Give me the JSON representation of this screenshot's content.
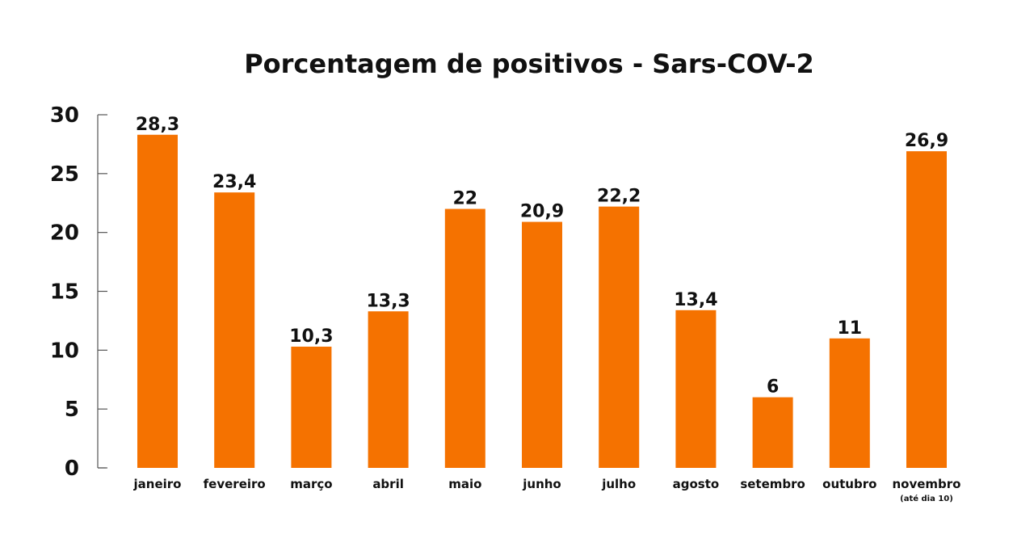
{
  "chart_data": {
    "type": "bar",
    "title": "Porcentagem de positivos - Sars-COV-2",
    "xlabel": "",
    "ylabel": "",
    "ylim": [
      0,
      30
    ],
    "yticks": [
      0,
      5,
      10,
      15,
      20,
      25,
      30
    ],
    "grid": false,
    "categories": [
      "janeiro",
      "fevereiro",
      "março",
      "abril",
      "maio",
      "junho",
      "julho",
      "agosto",
      "setembro",
      "outubro",
      "novembro"
    ],
    "category_notes": [
      "",
      "",
      "",
      "",
      "",
      "",
      "",
      "",
      "",
      "",
      "(até dia 10)"
    ],
    "values": [
      28.3,
      23.4,
      10.3,
      13.3,
      22,
      20.9,
      22.2,
      13.4,
      6,
      11,
      26.9
    ],
    "value_labels": [
      "28,3",
      "23,4",
      "10,3",
      "13,3",
      "22",
      "20,9",
      "22,2",
      "13,4",
      "6",
      "11",
      "26,9"
    ],
    "bar_color": "#F57200",
    "axis_color": "#555555"
  }
}
